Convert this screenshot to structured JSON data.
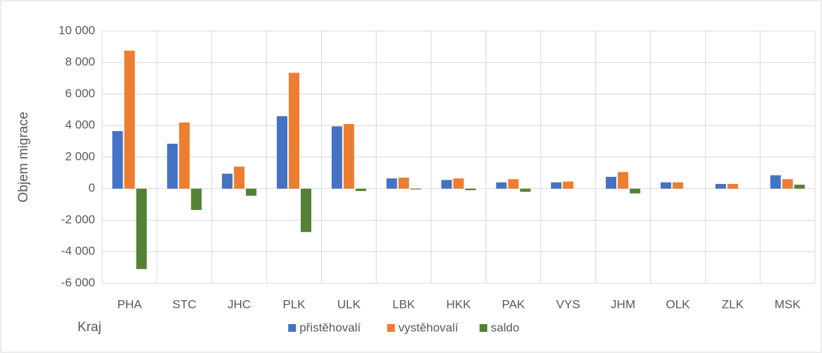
{
  "chart_data": {
    "type": "bar",
    "x_label": "Kraj",
    "y_label": "Objem migrace",
    "categories": [
      "PHA",
      "STC",
      "JHC",
      "PLK",
      "ULK",
      "LBK",
      "HKK",
      "PAK",
      "VYS",
      "JHM",
      "OLK",
      "ZLK",
      "MSK"
    ],
    "series": [
      {
        "name": "přistěhovalí",
        "color": "#4472c4",
        "values": [
          3650,
          2850,
          950,
          4600,
          3950,
          650,
          550,
          400,
          400,
          750,
          400,
          300,
          850
        ]
      },
      {
        "name": "vystěhovalí",
        "color": "#ed7d31",
        "values": [
          8750,
          4200,
          1400,
          7350,
          4100,
          700,
          650,
          600,
          450,
          1050,
          400,
          300,
          600
        ]
      },
      {
        "name": "saldo",
        "color": "#548235",
        "values": [
          -5100,
          -1350,
          -450,
          -2750,
          -150,
          -50,
          -100,
          -200,
          0,
          -300,
          0,
          0,
          250
        ]
      }
    ],
    "ylim": [
      -6000,
      10000
    ],
    "yticks": [
      {
        "value": -6000,
        "label": "-6 000"
      },
      {
        "value": -4000,
        "label": "-4 000"
      },
      {
        "value": -2000,
        "label": "-2 000"
      },
      0,
      {
        "value": 2000,
        "label": "2 000"
      },
      {
        "value": 4000,
        "label": "4 000"
      },
      {
        "value": 6000,
        "label": "6 000"
      },
      {
        "value": 8000,
        "label": "8 000"
      },
      {
        "value": 10000,
        "label": "10 000"
      }
    ],
    "grid": true,
    "legend": "bottom"
  }
}
